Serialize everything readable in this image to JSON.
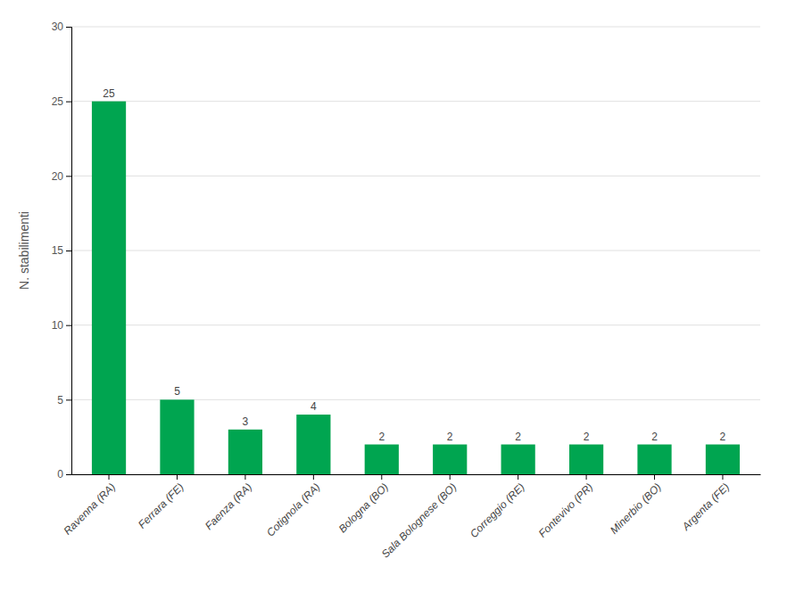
{
  "chart_data": {
    "type": "bar",
    "categories": [
      "Ravenna (RA)",
      "Ferrara (FE)",
      "Faenza (RA)",
      "Cotignola (RA)",
      "Bologna (BO)",
      "Sala Bolognese (BO)",
      "Correggio (RE)",
      "Fontevivo (PR)",
      "Minerbio (BO)",
      "Argenta (FE)"
    ],
    "values": [
      25,
      5,
      3,
      4,
      2,
      2,
      2,
      2,
      2,
      2
    ],
    "color": "#00a550",
    "ylabel": "N. stabilimenti",
    "ylim": [
      0,
      30
    ],
    "yticks": [
      0,
      5,
      10,
      15,
      20,
      25,
      30
    ],
    "grid": true,
    "data_labels": true
  }
}
